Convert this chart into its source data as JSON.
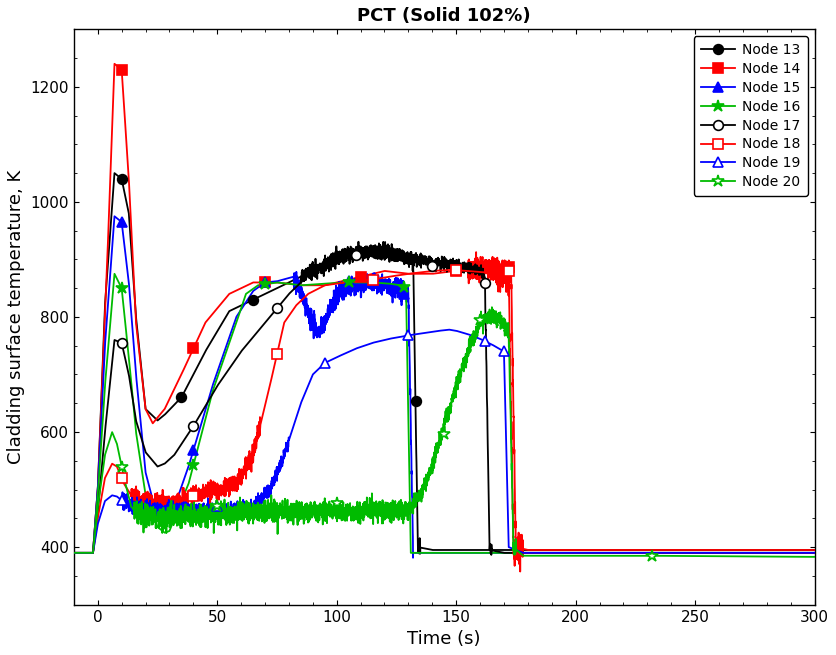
{
  "title": "PCT (Solid 102%)",
  "xlabel": "Time (s)",
  "ylabel": "Cladding surface temperature, K",
  "xlim": [
    -10,
    300
  ],
  "ylim": [
    300,
    1300
  ],
  "xticks": [
    0,
    50,
    100,
    150,
    200,
    250,
    300
  ],
  "yticks": [
    400,
    600,
    800,
    1000,
    1200
  ],
  "background_color": "#ffffff",
  "series": [
    {
      "name": "Node 13",
      "color": "#000000",
      "marker": "o",
      "filled": true
    },
    {
      "name": "Node 14",
      "color": "#ff0000",
      "marker": "s",
      "filled": true
    },
    {
      "name": "Node 15",
      "color": "#0000ff",
      "marker": "^",
      "filled": true
    },
    {
      "name": "Node 16",
      "color": "#00bb00",
      "marker": "*",
      "filled": true
    },
    {
      "name": "Node 17",
      "color": "#000000",
      "marker": "o",
      "filled": false
    },
    {
      "name": "Node 18",
      "color": "#ff0000",
      "marker": "s",
      "filled": false
    },
    {
      "name": "Node 19",
      "color": "#0000ff",
      "marker": "^",
      "filled": false
    },
    {
      "name": "Node 20",
      "color": "#00bb00",
      "marker": "*",
      "filled": false
    }
  ]
}
